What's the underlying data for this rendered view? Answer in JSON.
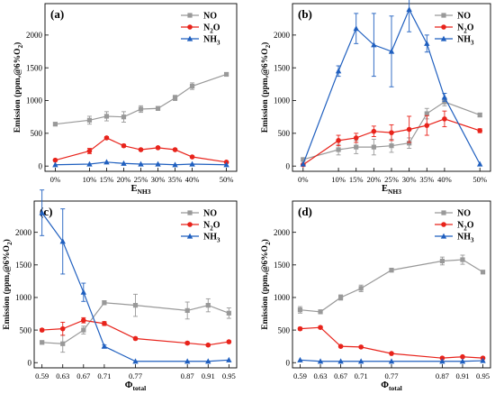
{
  "figure": {
    "colors": {
      "NO": "#999999",
      "N2O": "#e8231b",
      "NH3": "#1f5fbf",
      "axis": "#000000"
    },
    "legend_order": [
      "NO",
      "N2O",
      "NH3"
    ]
  },
  "chart_data": [
    {
      "id": "a",
      "type": "line",
      "panel_label": "(a)",
      "ylabel": "Emission (ppm,@6%O2)",
      "xlabel_main": "E",
      "xlabel_sub": "NH3",
      "x": [
        0,
        10,
        15,
        20,
        25,
        30,
        35,
        40,
        50
      ],
      "x_tick_labels": [
        "0%",
        "10%",
        "15%",
        "20%",
        "25%",
        "30%",
        "35%",
        "40%",
        "50%"
      ],
      "xlim": [
        -3,
        53
      ],
      "ylim": [
        -80,
        2480
      ],
      "yticks": [
        0,
        500,
        1000,
        1500,
        2000
      ],
      "legend": "top-right",
      "series": [
        {
          "name": "NO",
          "key": "NO",
          "marker": "square",
          "values": [
            640,
            700,
            760,
            750,
            870,
            880,
            1040,
            1220,
            1400
          ],
          "errors": [
            20,
            60,
            70,
            80,
            50,
            30,
            40,
            50,
            20
          ]
        },
        {
          "name": "N2O",
          "key": "N2O",
          "marker": "circle",
          "values": [
            90,
            230,
            430,
            310,
            250,
            280,
            250,
            140,
            60
          ],
          "errors": [
            10,
            40,
            20,
            20,
            15,
            15,
            15,
            15,
            10
          ]
        },
        {
          "name": "NH3",
          "key": "NH3",
          "marker": "triangle",
          "values": [
            20,
            30,
            60,
            40,
            30,
            30,
            20,
            30,
            20
          ],
          "errors": [
            0,
            0,
            0,
            0,
            0,
            0,
            0,
            0,
            0
          ]
        }
      ]
    },
    {
      "id": "b",
      "type": "line",
      "panel_label": "(b)",
      "ylabel": "Emission (ppm,@6%O2)",
      "xlabel_main": "E",
      "xlabel_sub": "NH3",
      "x": [
        0,
        10,
        15,
        20,
        25,
        30,
        35,
        40,
        50
      ],
      "x_tick_labels": [
        "0%",
        "10%",
        "15%",
        "20%",
        "25%",
        "30%",
        "35%",
        "40%",
        "50%"
      ],
      "xlim": [
        -3,
        53
      ],
      "ylim": [
        -80,
        2480
      ],
      "yticks": [
        0,
        500,
        1000,
        1500,
        2000
      ],
      "legend": "top-right",
      "series": [
        {
          "name": "NO",
          "key": "NO",
          "marker": "square",
          "values": [
            100,
            250,
            290,
            290,
            310,
            350,
            800,
            980,
            780
          ],
          "errors": [
            20,
            80,
            100,
            120,
            100,
            80,
            80,
            60,
            30
          ]
        },
        {
          "name": "N2O",
          "key": "N2O",
          "marker": "circle",
          "values": [
            20,
            390,
            430,
            530,
            510,
            560,
            620,
            720,
            540
          ],
          "errors": [
            10,
            80,
            70,
            80,
            120,
            200,
            150,
            120,
            30
          ]
        },
        {
          "name": "NH3",
          "key": "NH3",
          "marker": "triangle",
          "values": [
            30,
            1450,
            2100,
            1850,
            1750,
            2390,
            1870,
            1050,
            30
          ],
          "errors": [
            0,
            80,
            230,
            480,
            540,
            340,
            130,
            60,
            0
          ]
        }
      ]
    },
    {
      "id": "c",
      "type": "line",
      "panel_label": "(c)",
      "ylabel": "Emission (ppm,@6%O2)",
      "xlabel_main": "Φ",
      "xlabel_sub": "total",
      "x": [
        0.59,
        0.63,
        0.67,
        0.71,
        0.77,
        0.87,
        0.91,
        0.95
      ],
      "x_tick_labels": [
        "0.59",
        "0.63",
        "0.67",
        "0.71",
        "0.77",
        "0.87",
        "0.91",
        "0.95"
      ],
      "xlim": [
        0.575,
        0.965
      ],
      "ylim": [
        -80,
        2480
      ],
      "yticks": [
        0,
        500,
        1000,
        1500,
        2000
      ],
      "legend": "top-right",
      "series": [
        {
          "name": "NO",
          "key": "NO",
          "marker": "square",
          "values": [
            310,
            290,
            500,
            920,
            880,
            800,
            880,
            760
          ],
          "errors": [
            20,
            130,
            60,
            30,
            170,
            130,
            100,
            80
          ]
        },
        {
          "name": "N2O",
          "key": "N2O",
          "marker": "circle",
          "values": [
            500,
            520,
            650,
            600,
            370,
            300,
            270,
            320
          ],
          "errors": [
            20,
            100,
            40,
            30,
            20,
            20,
            15,
            15
          ]
        },
        {
          "name": "NH3",
          "key": "NH3",
          "marker": "triangle",
          "values": [
            2300,
            1860,
            1080,
            250,
            20,
            20,
            20,
            40
          ],
          "errors": [
            350,
            500,
            140,
            20,
            0,
            0,
            0,
            0
          ]
        }
      ]
    },
    {
      "id": "d",
      "type": "line",
      "panel_label": "(d)",
      "ylabel": "Emission (ppm,@6%O2)",
      "xlabel_main": "Φ",
      "xlabel_sub": "total",
      "x": [
        0.59,
        0.63,
        0.67,
        0.71,
        0.77,
        0.87,
        0.91,
        0.95
      ],
      "x_tick_labels": [
        "0.59",
        "0.63",
        "0.67",
        "0.71",
        "0.77",
        "0.87",
        "0.91",
        "0.95"
      ],
      "xlim": [
        0.575,
        0.965
      ],
      "ylim": [
        -80,
        2480
      ],
      "yticks": [
        0,
        500,
        1000,
        1500,
        2000
      ],
      "legend": "top-right",
      "series": [
        {
          "name": "NO",
          "key": "NO",
          "marker": "square",
          "values": [
            810,
            780,
            1000,
            1140,
            1420,
            1560,
            1580,
            1390
          ],
          "errors": [
            50,
            30,
            40,
            50,
            30,
            60,
            70,
            20
          ]
        },
        {
          "name": "N2O",
          "key": "N2O",
          "marker": "circle",
          "values": [
            520,
            540,
            250,
            240,
            140,
            70,
            90,
            70
          ],
          "errors": [
            20,
            20,
            15,
            15,
            10,
            10,
            10,
            10
          ]
        },
        {
          "name": "NH3",
          "key": "NH3",
          "marker": "triangle",
          "values": [
            40,
            20,
            20,
            20,
            20,
            20,
            20,
            30
          ],
          "errors": [
            0,
            0,
            0,
            0,
            0,
            0,
            0,
            0
          ]
        }
      ]
    }
  ]
}
